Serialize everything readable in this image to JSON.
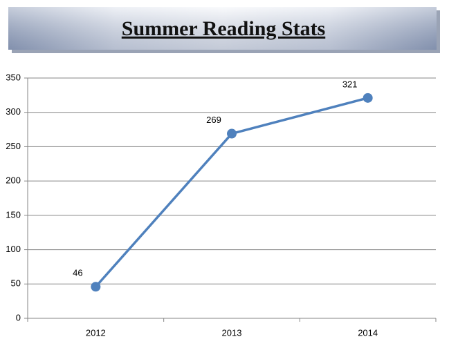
{
  "chart_data": {
    "type": "line",
    "title": "Summer Reading Stats",
    "categories": [
      "2012",
      "2013",
      "2014"
    ],
    "values": [
      46,
      269,
      321
    ],
    "color": "#4f81bd",
    "ylim": [
      0,
      350
    ],
    "yticks": [
      0,
      50,
      100,
      150,
      200,
      250,
      300,
      350
    ],
    "grid": true,
    "data_labels": true
  }
}
